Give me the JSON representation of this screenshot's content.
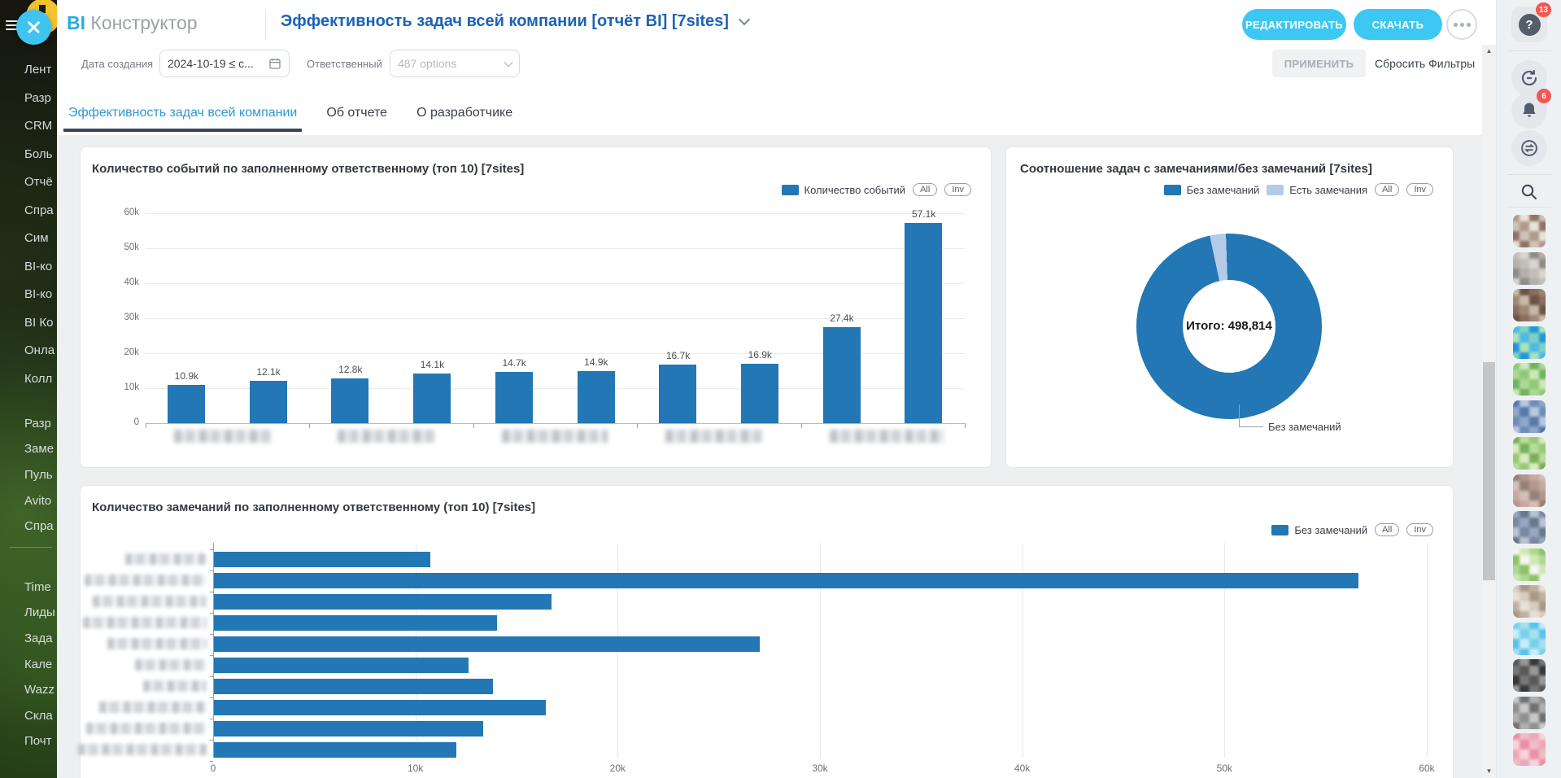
{
  "app": {
    "logo_primary": "BI",
    "logo_secondary": "Конструктор"
  },
  "header": {
    "title": "Эффективность задач всей компании [отчёт BI] [7sites]",
    "edit_button": "РЕДАКТИРОВАТЬ",
    "download_button": "СКАЧАТЬ"
  },
  "filters": {
    "date_label": "Дата создания",
    "date_value": "2024-10-19 ≤ с...",
    "responsible_label": "Ответственный",
    "responsible_value": "487 options",
    "apply_button": "ПРИМЕНИТЬ",
    "reset_button": "Сбросить Фильтры"
  },
  "tabs": {
    "items": [
      {
        "label": "Эффективность задач всей компании",
        "active": true
      },
      {
        "label": "Об отчете",
        "active": false
      },
      {
        "label": "О разработчике",
        "active": false
      }
    ]
  },
  "left_menu": {
    "items": [
      "Лент",
      "Разр",
      "CRM",
      "Боль",
      "Отчё",
      "Спра",
      "Сим",
      "BI-ко",
      "BI-ко",
      "BI Ко",
      "Онла",
      "Колл",
      "Разр",
      "Заме",
      "Пуль",
      "Avito",
      "Спра",
      "Time",
      "Лиды",
      "Зада",
      "Кале",
      "Wazz",
      "Скла",
      "Почт"
    ]
  },
  "right_rail": {
    "help_badge": "13",
    "bell_badge": "6",
    "icon_names": [
      "help-icon",
      "sync-icon",
      "bell-icon",
      "chat-icon",
      "search-icon"
    ],
    "avatars": [
      [
        "#b1998b",
        "#cfc3b8",
        "#8d7466",
        "#e8e2da"
      ],
      [
        "#b5b0ac",
        "#8f8c88",
        "#d8d5d2",
        "#c4beb8"
      ],
      [
        "#8a6f5f",
        "#6b5346",
        "#c9b8a8",
        "#a08874"
      ],
      [
        "#7ed3c0",
        "#4db8e8",
        "#a8e4b8",
        "#2196d8"
      ],
      [
        "#8fc87a",
        "#aed898",
        "#6fb35c",
        "#cde8ba"
      ],
      [
        "#8fa8cc",
        "#6f8cb8",
        "#b8c8e0",
        "#5878a8"
      ],
      [
        "#98c878",
        "#b8dc9c",
        "#78b058",
        "#d8ecc0"
      ],
      [
        "#b09890",
        "#988078",
        "#d0c0b8",
        "#c8a8a0"
      ],
      [
        "#98a8c0",
        "#7888a0",
        "#b8c4d4",
        "#68788c"
      ],
      [
        "#90c068",
        "#b0d890",
        "#d0e8b8",
        "#f2f6ee"
      ],
      [
        "#c0b0a0",
        "#a89888",
        "#d8ccc0",
        "#e8e0d4"
      ],
      [
        "#a8e0f0",
        "#78d0ec",
        "#c8ecf8",
        "#58c4e8"
      ],
      [
        "#585858",
        "#787878",
        "#383838",
        "#989898"
      ],
      [
        "#909090",
        "#b0b0b0",
        "#707070",
        "#c8c8c8"
      ],
      [
        "#eca8b8",
        "#f0bcc8",
        "#e890a4",
        "#f8d4dc"
      ]
    ]
  },
  "chart_data": [
    {
      "type": "bar",
      "title": "Количество событий по заполненному ответственному (топ 10) [7sites]",
      "legend": [
        {
          "label": "Количество событий",
          "color": "#2277b4"
        }
      ],
      "controls": [
        "All",
        "Inv"
      ],
      "categories_anonymized": true,
      "values": [
        10900,
        12100,
        12800,
        14100,
        14700,
        14900,
        16700,
        16900,
        27400,
        57100
      ],
      "value_labels": [
        "10.9k",
        "12.1k",
        "12.8k",
        "14.1k",
        "14.7k",
        "14.9k",
        "16.7k",
        "16.9k",
        "27.4k",
        "57.1k"
      ],
      "ylim": [
        0,
        60000
      ],
      "yticks": [
        "0",
        "10k",
        "20k",
        "30k",
        "40k",
        "50k",
        "60k"
      ]
    },
    {
      "type": "donut",
      "title": "Соотношение задач с замечаниями/без замечаний [7sites]",
      "legend": [
        {
          "label": "Без замечаний",
          "color": "#2277b4"
        },
        {
          "label": "Есть замечания",
          "color": "#b4cbe8"
        }
      ],
      "controls": [
        "All",
        "Inv"
      ],
      "center_label": "Итого: 498,814",
      "total": 498814,
      "slices": [
        {
          "label": "Без замечаний",
          "pct": 97.2,
          "color": "#2277b4"
        },
        {
          "label": "Есть замечания",
          "pct": 2.8,
          "color": "#b4cbe8"
        }
      ],
      "callout_label": "Без замечаний"
    },
    {
      "type": "hbar",
      "title": "Количество замечаний по заполненному ответственному (топ 10) [7sites]",
      "legend": [
        {
          "label": "Без замечаний",
          "color": "#2277b4"
        }
      ],
      "controls": [
        "All",
        "Inv"
      ],
      "categories_anonymized": true,
      "values": [
        10700,
        56600,
        16700,
        14000,
        27000,
        12600,
        13800,
        16400,
        13300,
        12000
      ],
      "xlim": [
        0,
        60000
      ],
      "xticks": [
        "0",
        "10k",
        "20k",
        "30k",
        "40k",
        "50k",
        "60k"
      ]
    }
  ]
}
